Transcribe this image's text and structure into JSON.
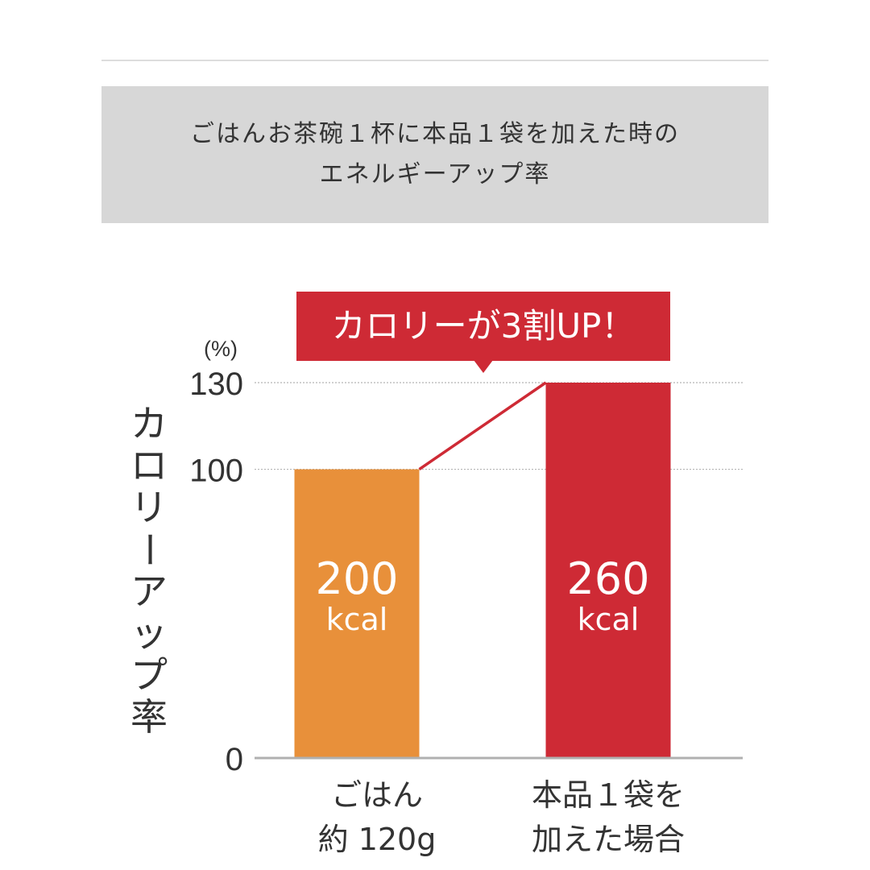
{
  "header": {
    "title_line1": "ごはんお茶碗１杯に本品１袋を加えた時の",
    "title_line2": "エネルギーアップ率"
  },
  "chart_data": {
    "type": "bar",
    "title": "ごはんお茶碗１杯に本品１袋を加えた時の エネルギーアップ率",
    "ylabel": "カロリーアップ率",
    "yunit": "(%)",
    "ylim": [
      0,
      130
    ],
    "yticks": [
      0,
      100,
      130
    ],
    "categories": [
      [
        "ごはん",
        "約 120g"
      ],
      [
        "本品１袋を",
        "加えた場合"
      ]
    ],
    "values": [
      100,
      130
    ],
    "data_labels": [
      {
        "value": "200",
        "unit": "kcal"
      },
      {
        "value": "260",
        "unit": "kcal"
      }
    ],
    "colors": [
      "#E8903A",
      "#CE2A35"
    ],
    "callout": "カロリーが3割UP！",
    "grid": "dotted lines at 100 and 130",
    "legend": "none"
  }
}
